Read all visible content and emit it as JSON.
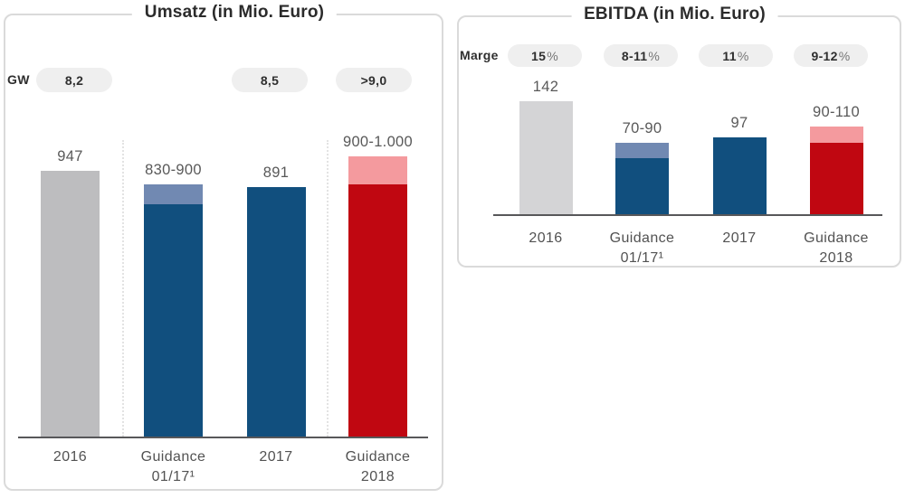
{
  "chart_data": [
    {
      "type": "bar",
      "title": "Umsatz (in Mio. Euro)",
      "badge_row": {
        "label": "GW",
        "badges": [
          "8,2",
          null,
          "8,5",
          ">9,0"
        ]
      },
      "categories": [
        [
          "2016"
        ],
        [
          "Guidance",
          "01/17¹"
        ],
        [
          "2017"
        ],
        [
          "Guidance",
          "2018"
        ]
      ],
      "bars": [
        {
          "label": "947",
          "value": 947,
          "color": "#bdbdbf"
        },
        {
          "label": "830-900",
          "value": 830,
          "range_to": 900,
          "color": "#114f7e",
          "range_color": "#7189b2"
        },
        {
          "label": "891",
          "value": 891,
          "color": "#114f7e"
        },
        {
          "label": "900-1.000",
          "value": 900,
          "range_to": 1000,
          "color": "#c00711",
          "range_color": "#f49a9e"
        }
      ],
      "ylim": [
        0,
        1000
      ],
      "separators_after_category": [
        0,
        2
      ],
      "grid": "off",
      "legend": "none"
    },
    {
      "type": "bar",
      "title": "EBITDA (in Mio. Euro)",
      "badge_row": {
        "label": "Marge",
        "badges": [
          "15%",
          "8-11%",
          "11%",
          "9-12%"
        ]
      },
      "categories": [
        [
          "2016"
        ],
        [
          "Guidance",
          "01/17¹"
        ],
        [
          "2017"
        ],
        [
          "Guidance",
          "2018"
        ]
      ],
      "bars": [
        {
          "label": "142",
          "value": 142,
          "color": "#d4d4d6"
        },
        {
          "label": "70-90",
          "value": 70,
          "range_to": 90,
          "color": "#114f7e",
          "range_color": "#7189b2"
        },
        {
          "label": "97",
          "value": 97,
          "color": "#114f7e"
        },
        {
          "label": "90-110",
          "value": 90,
          "range_to": 110,
          "color": "#c00711",
          "range_color": "#f49a9e"
        }
      ],
      "ylim": [
        0,
        160
      ],
      "separators_after_category": [],
      "grid": "off",
      "legend": "none"
    }
  ],
  "colors": {
    "actual_blue": "#114f7e",
    "range_light_blue": "#7189b2",
    "guidance_red": "#c00711",
    "range_pink": "#f49a9e",
    "prior_year_gray": "#bdbdbf",
    "prior_year_gray_light": "#d4d4d6",
    "badge_background": "#efefef",
    "axis_line": "#58585a",
    "title_text": "#2b2b2b",
    "label_text": "#595959"
  }
}
